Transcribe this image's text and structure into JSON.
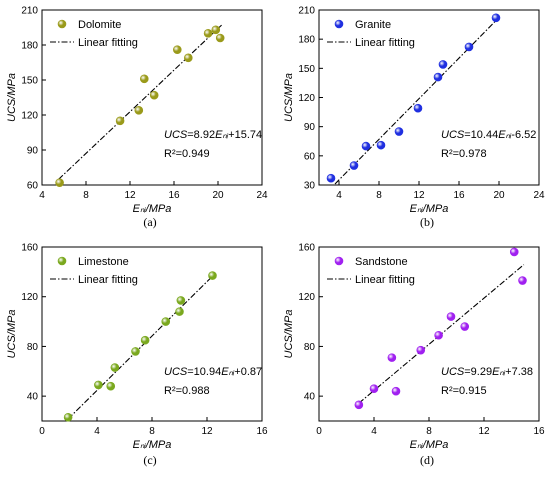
{
  "chart_data": [
    {
      "type": "scatter",
      "panel": "(a)",
      "xlabel": "Eₙᵢ/MPa",
      "ylabel": "UCS/MPa",
      "xlim": [
        4,
        24
      ],
      "ylim": [
        60,
        210
      ],
      "xticks": [
        4,
        8,
        12,
        16,
        20,
        24
      ],
      "yticks": [
        60,
        90,
        120,
        150,
        180,
        210
      ],
      "series": [
        {
          "name": "Dolomite",
          "color": "#9a9a1a",
          "marker": "circle",
          "x": [
            5.6,
            11.1,
            12.8,
            13.3,
            14.2,
            16.3,
            17.3,
            19.1,
            19.8,
            20.2
          ],
          "y": [
            62,
            115,
            124,
            151,
            137,
            176,
            169,
            190,
            193,
            186
          ]
        },
        {
          "name": "Linear fitting",
          "line_style": "dash-dot",
          "slope": 8.92,
          "intercept": 15.74,
          "x_range": [
            5.5,
            20.4
          ]
        }
      ],
      "equation": {
        "prefix": "UCS",
        "text": "=8.92",
        "sub": "Eₙᵢ",
        "suffix": "+15.74"
      },
      "r2": {
        "label": "R²=",
        "value": "0.949"
      }
    },
    {
      "type": "scatter",
      "panel": "(b)",
      "xlabel": "Eₙᵢ/MPa",
      "ylabel": "UCS/MPa",
      "xlim": [
        2,
        24
      ],
      "ylim": [
        30,
        210
      ],
      "xticks": [
        4,
        8,
        12,
        16,
        20,
        24
      ],
      "yticks": [
        30,
        60,
        90,
        120,
        150,
        180,
        210
      ],
      "series": [
        {
          "name": "Granite",
          "color": "#1f2fe0",
          "marker": "circle",
          "x": [
            3.2,
            5.5,
            6.7,
            8.2,
            10.0,
            11.9,
            13.9,
            14.4,
            17.0,
            19.7
          ],
          "y": [
            37,
            50,
            70,
            71,
            85,
            109,
            141,
            154,
            172,
            202
          ]
        },
        {
          "name": "Linear fitting",
          "line_style": "dash-dot",
          "slope": 10.44,
          "intercept": -6.52,
          "x_range": [
            3.6,
            20.0
          ]
        }
      ],
      "equation": {
        "prefix": "UCS",
        "text": "=10.44",
        "sub": "Eₙᵢ",
        "suffix": "-6.52"
      },
      "r2": {
        "label": "R²=",
        "value": "0.978"
      }
    },
    {
      "type": "scatter",
      "panel": "(c)",
      "xlabel": "Eₙᵢ/MPa",
      "ylabel": "UCS/MPa",
      "xlim": [
        0,
        16
      ],
      "ylim": [
        20,
        160
      ],
      "xticks": [
        0,
        4,
        8,
        12,
        16
      ],
      "yticks": [
        40,
        80,
        120,
        160
      ],
      "series": [
        {
          "name": "Limestone",
          "color": "#7aa81e",
          "marker": "circle",
          "x": [
            1.9,
            4.1,
            5.0,
            5.3,
            6.8,
            7.5,
            9.0,
            10.0,
            10.1,
            12.4
          ],
          "y": [
            23,
            49,
            48,
            63,
            76,
            85,
            100,
            108,
            117,
            137
          ]
        },
        {
          "name": "Linear fitting",
          "line_style": "dash-dot",
          "slope": 10.94,
          "intercept": 0.87,
          "x_range": [
            1.9,
            12.5
          ]
        }
      ],
      "equation": {
        "prefix": "UCS",
        "text": "=10.94",
        "sub": "Eₙᵢ",
        "suffix": "+0.87"
      },
      "r2": {
        "label": "R²=",
        "value": "0.988"
      }
    },
    {
      "type": "scatter",
      "panel": "(d)",
      "xlabel": "Eₙᵢ/MPa",
      "ylabel": "UCS/MPa",
      "xlim": [
        0,
        16
      ],
      "ylim": [
        20,
        160
      ],
      "xticks": [
        0,
        4,
        8,
        12,
        16
      ],
      "yticks": [
        40,
        80,
        120,
        160
      ],
      "series": [
        {
          "name": "Sandstone",
          "color": "#a020f0",
          "marker": "circle",
          "x": [
            2.9,
            4.0,
            5.3,
            5.6,
            7.4,
            8.7,
            9.6,
            10.6,
            14.2,
            14.8
          ],
          "y": [
            33,
            46,
            71,
            44,
            77,
            89,
            104,
            96,
            156,
            133
          ]
        },
        {
          "name": "Linear fitting",
          "line_style": "dash-dot",
          "slope": 9.29,
          "intercept": 7.38,
          "x_range": [
            2.9,
            14.9
          ]
        }
      ],
      "equation": {
        "prefix": "UCS",
        "text": "=9.29",
        "sub": "Eₙᵢ",
        "suffix": "+7.38"
      },
      "r2": {
        "label": "R²=",
        "value": "0.915"
      }
    }
  ]
}
